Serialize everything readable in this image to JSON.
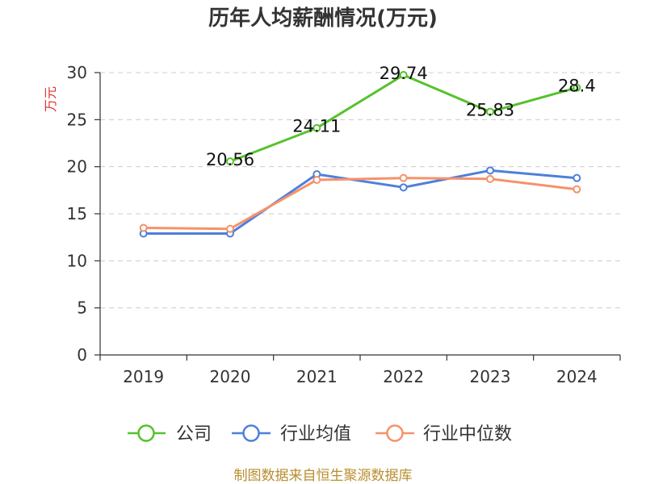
{
  "chart_data": {
    "type": "line",
    "title": "历年人均薪酬情况(万元)",
    "ylabel": "万元",
    "categories": [
      "2019",
      "2020",
      "2021",
      "2022",
      "2023",
      "2024"
    ],
    "ylim": [
      0,
      30
    ],
    "yticks": [
      0,
      5,
      10,
      15,
      20,
      25,
      30
    ],
    "grid": true,
    "series": [
      {
        "name": "公司",
        "color": "#56c22b",
        "values": [
          null,
          20.56,
          24.11,
          29.74,
          25.83,
          28.4
        ],
        "data_labels": true
      },
      {
        "name": "行业均值",
        "color": "#4f7fdc",
        "values": [
          12.9,
          12.9,
          19.2,
          17.8,
          19.6,
          18.8
        ],
        "data_labels": false
      },
      {
        "name": "行业中位数",
        "color": "#f5926b",
        "values": [
          13.5,
          13.4,
          18.6,
          18.8,
          18.7,
          17.6
        ],
        "data_labels": false
      }
    ]
  },
  "footer": {
    "source": "制图数据来自恒生聚源数据库"
  },
  "colors": {
    "ylabel": "#e03030",
    "footer": "#b98e2f"
  }
}
